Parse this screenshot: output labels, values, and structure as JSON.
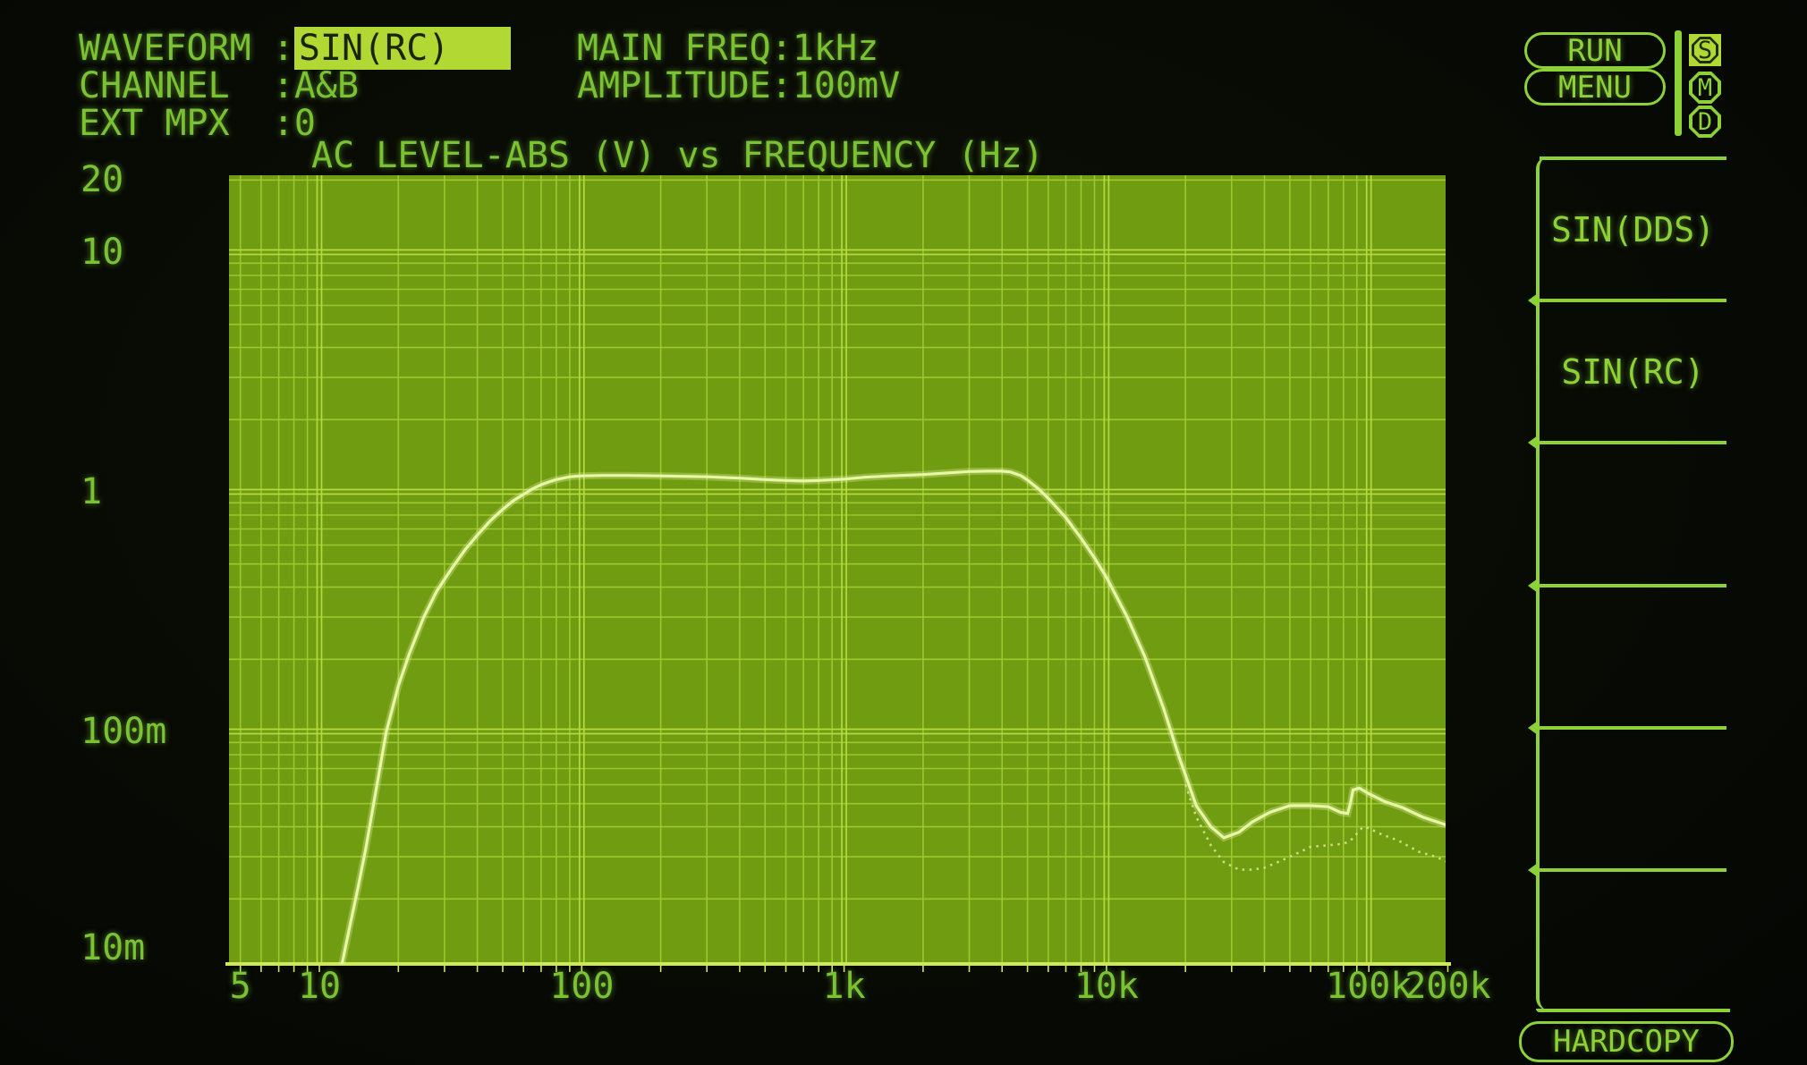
{
  "header": {
    "fields": [
      {
        "label": "WAVEFORM :",
        "value": "SIN(RC)",
        "highlighted": true
      },
      {
        "label": "CHANNEL  :",
        "value": "A&B",
        "highlighted": false
      },
      {
        "label": "EXT MPX  :",
        "value": "0",
        "highlighted": false
      }
    ],
    "params": [
      {
        "label": "MAIN FREQ:",
        "value": "1kHz"
      },
      {
        "label": "AMPLITUDE:",
        "value": "100mV"
      }
    ]
  },
  "top_right": {
    "run_label": "RUN",
    "menu_label": "MENU",
    "badges": [
      {
        "letter": "S",
        "active": true
      },
      {
        "letter": "M",
        "active": false
      },
      {
        "letter": "D",
        "active": false
      }
    ]
  },
  "softkeys": {
    "items": [
      {
        "label": "SIN(DDS)"
      },
      {
        "label": "SIN(RC)"
      },
      {
        "label": ""
      },
      {
        "label": ""
      },
      {
        "label": ""
      },
      {
        "label": ""
      }
    ],
    "hardcopy_label": "HARDCOPY"
  },
  "chart_data": {
    "type": "line",
    "title": "AC LEVEL-ABS (V) vs FREQUENCY (Hz)",
    "xlabel": "FREQUENCY (Hz)",
    "ylabel": "AC LEVEL-ABS (V)",
    "x_axis": {
      "scale": "log",
      "min": 5,
      "max": 200000,
      "unit": "Hz",
      "ticks": [
        {
          "text": "5",
          "f": 5
        },
        {
          "text": "10",
          "f": 10
        },
        {
          "text": "100",
          "f": 100
        },
        {
          "text": "1k",
          "f": 1000
        },
        {
          "text": "10k",
          "f": 10000
        },
        {
          "text": "100k",
          "f": 100000
        },
        {
          "text": "200k",
          "f": 200000
        }
      ]
    },
    "y_axis": {
      "scale": "log",
      "min": 0.01,
      "max": 20,
      "unit": "V",
      "ticks": [
        {
          "text": "20",
          "v": 20
        },
        {
          "text": "10",
          "v": 10
        },
        {
          "text": "1",
          "v": 1
        },
        {
          "text": "100m",
          "v": 0.1
        },
        {
          "text": "10m",
          "v": 0.01
        }
      ]
    },
    "grid": true,
    "legend": "none",
    "series": [
      {
        "name": "channel-A",
        "style": "solid",
        "points": [
          [
            12,
            0.0098
          ],
          [
            13,
            0.015
          ],
          [
            14,
            0.022
          ],
          [
            15,
            0.032
          ],
          [
            16,
            0.048
          ],
          [
            17,
            0.07
          ],
          [
            18,
            0.1
          ],
          [
            20,
            0.155
          ],
          [
            22,
            0.21
          ],
          [
            25,
            0.3
          ],
          [
            28,
            0.385
          ],
          [
            32,
            0.48
          ],
          [
            36,
            0.575
          ],
          [
            40,
            0.66
          ],
          [
            45,
            0.76
          ],
          [
            50,
            0.845
          ],
          [
            55,
            0.92
          ],
          [
            60,
            0.975
          ],
          [
            65,
            1.03
          ],
          [
            70,
            1.07
          ],
          [
            75,
            1.1
          ],
          [
            80,
            1.125
          ],
          [
            90,
            1.155
          ],
          [
            100,
            1.165
          ],
          [
            120,
            1.17
          ],
          [
            150,
            1.17
          ],
          [
            200,
            1.165
          ],
          [
            300,
            1.155
          ],
          [
            400,
            1.14
          ],
          [
            500,
            1.125
          ],
          [
            600,
            1.115
          ],
          [
            700,
            1.11
          ],
          [
            800,
            1.115
          ],
          [
            1000,
            1.13
          ],
          [
            1200,
            1.15
          ],
          [
            1500,
            1.165
          ],
          [
            2000,
            1.18
          ],
          [
            2500,
            1.2
          ],
          [
            3000,
            1.215
          ],
          [
            3500,
            1.22
          ],
          [
            4000,
            1.22
          ],
          [
            4300,
            1.21
          ],
          [
            4700,
            1.17
          ],
          [
            5000,
            1.12
          ],
          [
            5500,
            1.03
          ],
          [
            6000,
            0.94
          ],
          [
            7000,
            0.78
          ],
          [
            8000,
            0.64
          ],
          [
            9000,
            0.53
          ],
          [
            10000,
            0.44
          ],
          [
            12000,
            0.3
          ],
          [
            14000,
            0.205
          ],
          [
            16500,
            0.125
          ],
          [
            19000,
            0.077
          ],
          [
            22000,
            0.049
          ],
          [
            25000,
            0.04
          ],
          [
            28000,
            0.036
          ],
          [
            32000,
            0.038
          ],
          [
            36000,
            0.042
          ],
          [
            42000,
            0.046
          ],
          [
            50000,
            0.049
          ],
          [
            60000,
            0.049
          ],
          [
            70000,
            0.0485
          ],
          [
            78000,
            0.046
          ],
          [
            83000,
            0.0455
          ],
          [
            85000,
            0.05
          ],
          [
            87000,
            0.057
          ],
          [
            92000,
            0.058
          ],
          [
            100000,
            0.055
          ],
          [
            115000,
            0.051
          ],
          [
            135000,
            0.048
          ],
          [
            160000,
            0.044
          ],
          [
            200000,
            0.0405
          ]
        ]
      },
      {
        "name": "channel-B",
        "style": "dotted",
        "points": [
          [
            20000,
            0.06
          ],
          [
            22000,
            0.044
          ],
          [
            25000,
            0.0335
          ],
          [
            28000,
            0.0285
          ],
          [
            32000,
            0.0265
          ],
          [
            36000,
            0.0265
          ],
          [
            40000,
            0.027
          ],
          [
            45000,
            0.0285
          ],
          [
            50000,
            0.03
          ],
          [
            55000,
            0.0315
          ],
          [
            60000,
            0.033
          ],
          [
            70000,
            0.0335
          ],
          [
            80000,
            0.034
          ],
          [
            85000,
            0.035
          ],
          [
            90000,
            0.0375
          ],
          [
            95000,
            0.04
          ],
          [
            100000,
            0.0395
          ],
          [
            110000,
            0.0375
          ],
          [
            130000,
            0.035
          ],
          [
            155000,
            0.0315
          ],
          [
            180000,
            0.03
          ],
          [
            200000,
            0.0285
          ]
        ]
      }
    ]
  },
  "colors": {
    "screen_bg": "#070a04",
    "plot_bg": "#6f9c10",
    "grid_minor": "#9dc72f",
    "grid_major": "#b5da40",
    "axis_line": "#cde75e",
    "trace_a": "#e8f6a6",
    "trace_b": "#c8df82",
    "text_green": "#79c232",
    "border_green": "#8cd136",
    "highlight_bg": "#b2d833",
    "highlight_text": "#1a2406"
  }
}
